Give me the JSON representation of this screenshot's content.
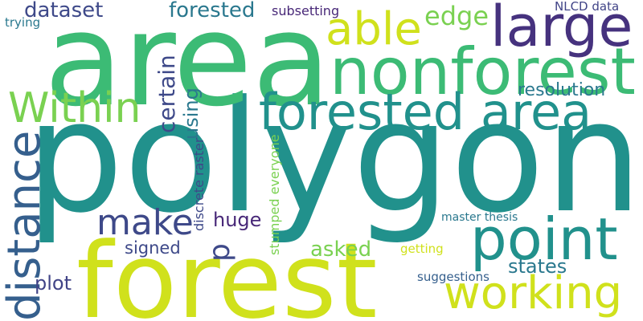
{
  "words": [
    {
      "key": "polygon",
      "text": "polygon",
      "color": "#21918c"
    },
    {
      "key": "area",
      "text": "area",
      "color": "#3cbb75"
    },
    {
      "key": "forest",
      "text": "forest",
      "color": "#d0e11c"
    },
    {
      "key": "nonforest",
      "text": "nonforest",
      "color": "#3cbb75"
    },
    {
      "key": "forested_area",
      "text": "forested area",
      "color": "#21918c"
    },
    {
      "key": "point",
      "text": "point",
      "color": "#21918c"
    },
    {
      "key": "distance",
      "text": "distance",
      "color": "#355f8d"
    },
    {
      "key": "large",
      "text": "large",
      "color": "#46327e"
    },
    {
      "key": "within",
      "text": "Within",
      "color": "#7ad151"
    },
    {
      "key": "working",
      "text": "working",
      "color": "#d0e11c"
    },
    {
      "key": "able",
      "text": "able",
      "color": "#d0e11c"
    },
    {
      "key": "make",
      "text": "make",
      "color": "#3e4989"
    },
    {
      "key": "edge",
      "text": "edge",
      "color": "#7ad151"
    },
    {
      "key": "forested",
      "text": "forested",
      "color": "#2a788e"
    },
    {
      "key": "dataset",
      "text": "dataset",
      "color": "#3e4989"
    },
    {
      "key": "certain",
      "text": "certain",
      "color": "#3e4989"
    },
    {
      "key": "using",
      "text": "using",
      "color": "#2a788e"
    },
    {
      "key": "resolution",
      "text": "resolution",
      "color": "#2a788e"
    },
    {
      "key": "p",
      "text": "p",
      "color": "#3e4989"
    },
    {
      "key": "huge",
      "text": "huge",
      "color": "#482878"
    },
    {
      "key": "asked",
      "text": "asked",
      "color": "#7ad151"
    },
    {
      "key": "states",
      "text": "states",
      "color": "#2a788e"
    },
    {
      "key": "plot",
      "text": "plot",
      "color": "#414487"
    },
    {
      "key": "signed",
      "text": "signed",
      "color": "#3e4989"
    },
    {
      "key": "discrete_raster",
      "text": "discrete raster",
      "color": "#3e4989"
    },
    {
      "key": "stumped_everyone",
      "text": "stumped everyone",
      "color": "#7ad151"
    },
    {
      "key": "subsetting",
      "text": "subsetting",
      "color": "#482878"
    },
    {
      "key": "nlcd_data",
      "text": "NLCD data",
      "color": "#414487"
    },
    {
      "key": "trying",
      "text": "trying",
      "color": "#2a788e"
    },
    {
      "key": "master_thesis",
      "text": "master thesis",
      "color": "#2a788e"
    },
    {
      "key": "getting",
      "text": "getting",
      "color": "#d0e11c"
    },
    {
      "key": "suggestions",
      "text": "suggestions",
      "color": "#355f8d"
    }
  ]
}
